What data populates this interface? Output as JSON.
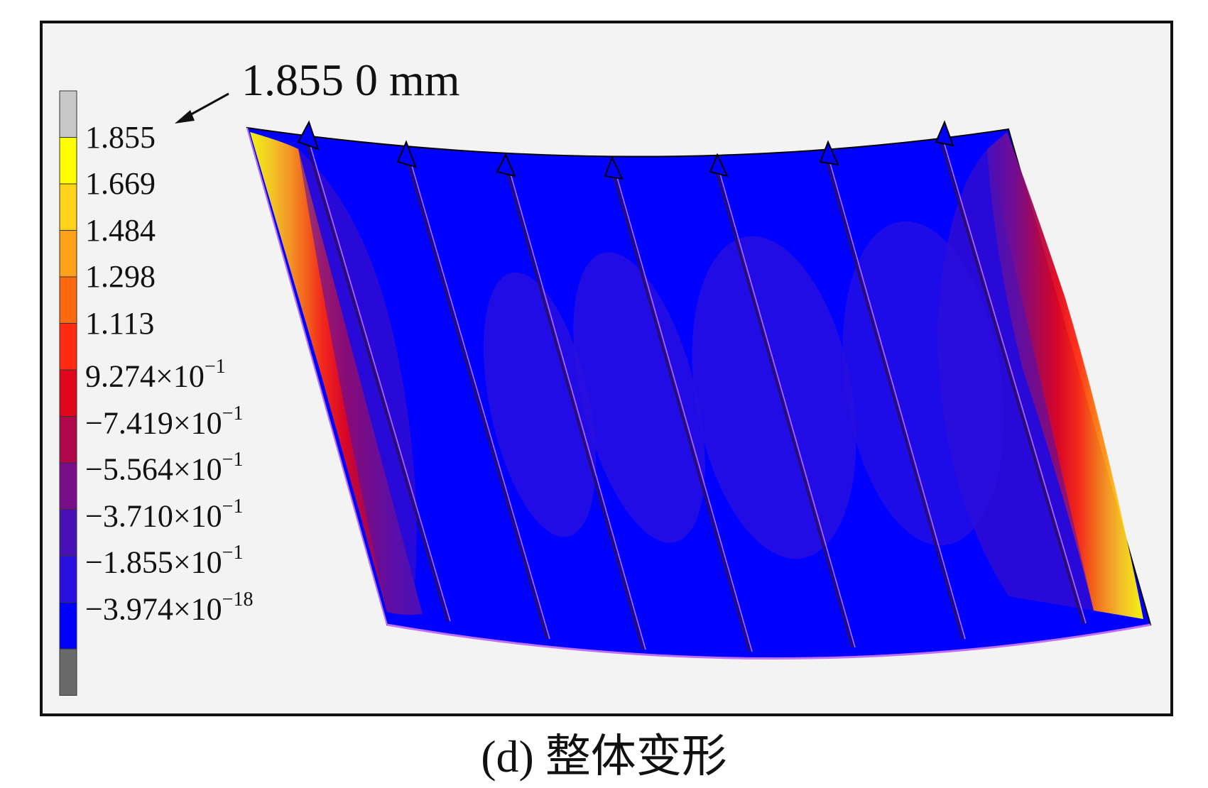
{
  "figure": {
    "callout_value": "1.855 0 mm",
    "caption": "(d) 整体变形"
  },
  "legend": {
    "top_color": "#c8c8c8",
    "bottom_color": "#6a6a6a",
    "bands": [
      {
        "label": "1.855",
        "color": "#ffff00"
      },
      {
        "label": "1.669",
        "color": "#ffd21a"
      },
      {
        "label": "1.484",
        "color": "#ffa21a"
      },
      {
        "label": "1.298",
        "color": "#ff6a10"
      },
      {
        "label": "1.113",
        "color": "#ff2a10"
      },
      {
        "mant": "9.274",
        "exp": "−1",
        "color": "#e2061c"
      },
      {
        "mant": "−7.419",
        "exp": "−1",
        "color": "#b0084a"
      },
      {
        "mant": "−5.564",
        "exp": "−1",
        "color": "#7a0e8a"
      },
      {
        "mant": "−3.710",
        "exp": "−1",
        "color": "#4a10b8"
      },
      {
        "mant": "−1.855",
        "exp": "−1",
        "color": "#2a0fde"
      },
      {
        "mant": "−3.974",
        "exp": "−18",
        "color": "#0000ff"
      }
    ]
  }
}
